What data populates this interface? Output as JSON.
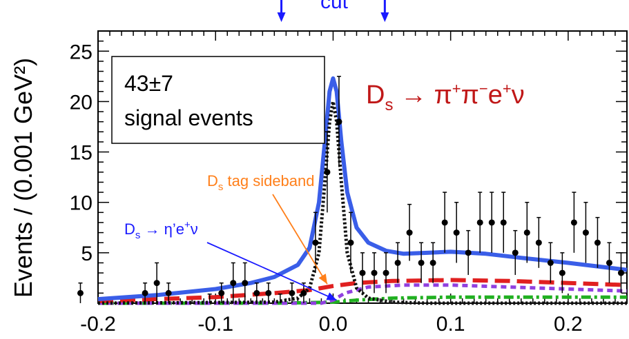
{
  "chart_data": {
    "type": "scatter",
    "title": "Ds → π⁺π⁻e⁺ν",
    "xlabel": "",
    "ylabel": "Events / (0.001 GeV²)",
    "xlim": [
      -0.2,
      0.25
    ],
    "ylim": [
      0,
      27
    ],
    "xticks": [
      "-0.2",
      "-0.1",
      "0.0",
      "0.1",
      "0.2"
    ],
    "yticks": [
      "5",
      "10",
      "15",
      "20",
      "25"
    ],
    "grid": false,
    "box": {
      "line1": "43±7",
      "line2": "signal events"
    },
    "cut": {
      "label": "cut",
      "x_left": -0.044,
      "x_right": 0.044
    },
    "annotations": [
      {
        "text": "Ds tag sideband",
        "color": "#ff7f1a",
        "target": [
          -0.005,
          1.9
        ]
      },
      {
        "text": "Ds → η'e⁺ν",
        "color": "#1a1aff",
        "target": [
          0.003,
          0.3
        ]
      }
    ],
    "points": [
      {
        "x": -0.215,
        "y": 1.0,
        "err": 1.0
      },
      {
        "x": -0.16,
        "y": 1.0,
        "err": 1.0
      },
      {
        "x": -0.15,
        "y": 2.0,
        "err": 2.0
      },
      {
        "x": -0.14,
        "y": 1.0,
        "err": 1.0
      },
      {
        "x": -0.105,
        "y": 0.0,
        "err": 0.9
      },
      {
        "x": -0.095,
        "y": 1.0,
        "err": 1.0
      },
      {
        "x": -0.085,
        "y": 2.0,
        "err": 2.0
      },
      {
        "x": -0.075,
        "y": 2.0,
        "err": 2.0
      },
      {
        "x": -0.065,
        "y": 1.0,
        "err": 1.0
      },
      {
        "x": -0.055,
        "y": 1.0,
        "err": 1.0
      },
      {
        "x": -0.045,
        "y": 0.0,
        "err": 0.9
      },
      {
        "x": -0.035,
        "y": 1.0,
        "err": 1.0
      },
      {
        "x": -0.025,
        "y": 1.0,
        "err": 1.0
      },
      {
        "x": -0.015,
        "y": 6.0,
        "err": 3.0
      },
      {
        "x": -0.005,
        "y": 13.0,
        "err": 4.0
      },
      {
        "x": 0.005,
        "y": 18.0,
        "err": 4.5
      },
      {
        "x": 0.015,
        "y": 6.0,
        "err": 3.0
      },
      {
        "x": 0.025,
        "y": 3.0,
        "err": 2.0
      },
      {
        "x": 0.035,
        "y": 3.0,
        "err": 2.0
      },
      {
        "x": 0.045,
        "y": 3.0,
        "err": 2.0
      },
      {
        "x": 0.055,
        "y": 4.0,
        "err": 2.0
      },
      {
        "x": 0.065,
        "y": 7.0,
        "err": 2.8
      },
      {
        "x": 0.075,
        "y": 4.0,
        "err": 2.0
      },
      {
        "x": 0.085,
        "y": 4.0,
        "err": 2.0
      },
      {
        "x": 0.095,
        "y": 8.0,
        "err": 3.0
      },
      {
        "x": 0.105,
        "y": 7.0,
        "err": 3.0
      },
      {
        "x": 0.115,
        "y": 5.0,
        "err": 2.2
      },
      {
        "x": 0.125,
        "y": 8.0,
        "err": 3.0
      },
      {
        "x": 0.135,
        "y": 8.0,
        "err": 3.0
      },
      {
        "x": 0.145,
        "y": 8.0,
        "err": 3.0
      },
      {
        "x": 0.155,
        "y": 5.0,
        "err": 2.2
      },
      {
        "x": 0.165,
        "y": 7.0,
        "err": 3.0
      },
      {
        "x": 0.175,
        "y": 6.0,
        "err": 2.5
      },
      {
        "x": 0.185,
        "y": 4.0,
        "err": 2.0
      },
      {
        "x": 0.195,
        "y": 3.0,
        "err": 2.0
      },
      {
        "x": 0.205,
        "y": 8.0,
        "err": 3.0
      },
      {
        "x": 0.215,
        "y": 7.0,
        "err": 3.0
      },
      {
        "x": 0.225,
        "y": 6.0,
        "err": 2.5
      },
      {
        "x": 0.235,
        "y": 4.0,
        "err": 2.0
      },
      {
        "x": 0.245,
        "y": 3.0,
        "err": 2.0
      }
    ],
    "curves": [
      {
        "style": "total-fit",
        "color": "#3a5ee8",
        "x": [
          -0.2,
          -0.15,
          -0.1,
          -0.07,
          -0.05,
          -0.03,
          -0.02,
          -0.012,
          -0.007,
          -0.003,
          0.0,
          0.003,
          0.007,
          0.012,
          0.02,
          0.03,
          0.045,
          0.06,
          0.08,
          0.1,
          0.13,
          0.16,
          0.2,
          0.25
        ],
        "y": [
          0.4,
          0.8,
          1.4,
          2.0,
          2.6,
          3.8,
          5.5,
          10.0,
          16.0,
          21.0,
          22.3,
          21.0,
          16.0,
          11.0,
          7.5,
          6.0,
          5.2,
          4.9,
          5.0,
          5.1,
          4.9,
          4.5,
          4.0,
          3.3
        ]
      },
      {
        "style": "signal",
        "color": "#111111",
        "x": [
          -0.2,
          -0.05,
          -0.03,
          -0.02,
          -0.012,
          -0.007,
          -0.003,
          0.0,
          0.003,
          0.007,
          0.012,
          0.02,
          0.03,
          0.05,
          0.08,
          0.25
        ],
        "y": [
          0.0,
          0.1,
          0.5,
          1.5,
          5.0,
          12.0,
          18.0,
          20.0,
          18.0,
          12.0,
          5.0,
          1.5,
          0.5,
          0.1,
          0.0,
          0.0
        ]
      },
      {
        "style": "sideband",
        "color": "#e02020",
        "x": [
          -0.2,
          -0.1,
          -0.05,
          -0.02,
          0.0,
          0.02,
          0.05,
          0.1,
          0.15,
          0.2,
          0.25
        ],
        "y": [
          0.2,
          0.6,
          1.0,
          1.3,
          1.7,
          2.0,
          2.2,
          2.3,
          2.2,
          2.0,
          1.8
        ]
      },
      {
        "style": "etaprime",
        "color": "#9040e0",
        "x": [
          -0.2,
          -0.05,
          -0.01,
          0.0,
          0.01,
          0.03,
          0.06,
          0.1,
          0.15,
          0.2,
          0.25
        ],
        "y": [
          0.0,
          0.0,
          0.0,
          0.3,
          1.0,
          1.6,
          1.8,
          1.8,
          1.6,
          1.4,
          1.2
        ]
      },
      {
        "style": "other-bkg",
        "color": "#20b020",
        "x": [
          -0.2,
          -0.05,
          0.0,
          0.02,
          0.05,
          0.1,
          0.15,
          0.2,
          0.25
        ],
        "y": [
          0.0,
          0.0,
          0.1,
          0.3,
          0.5,
          0.6,
          0.6,
          0.6,
          0.6
        ]
      }
    ]
  }
}
